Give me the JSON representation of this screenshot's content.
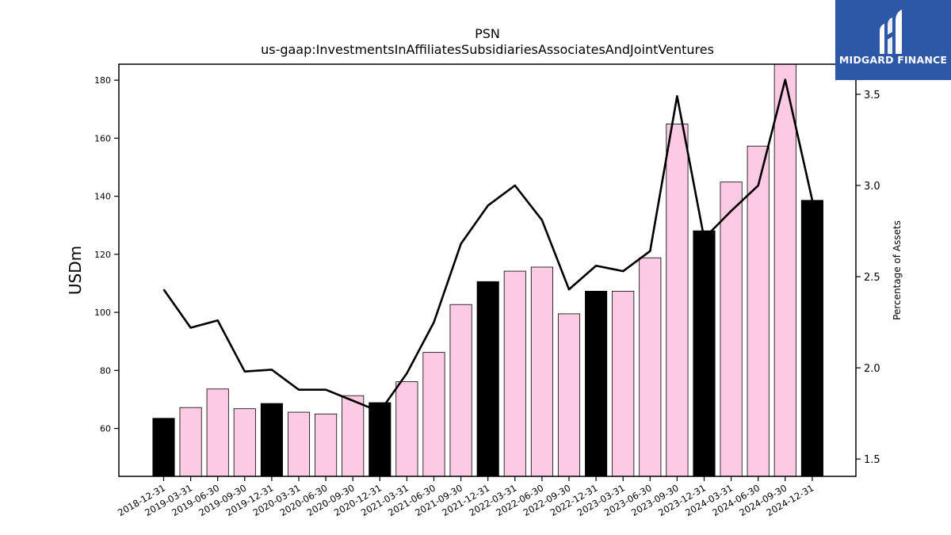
{
  "brand": {
    "name": "MIDGARD FINANCE",
    "bg_color": "#2c58a6"
  },
  "chart_data": {
    "type": "bar",
    "title": "PSN",
    "subtitle": "us-gaap:InvestmentsInAffiliatesSubsidiariesAssociatesAndJointVentures",
    "ylabel": "USDm",
    "y2label": "Percentage of Assets",
    "categories": [
      "2018-12-31",
      "2019-03-31",
      "2019-06-30",
      "2019-09-30",
      "2019-12-31",
      "2020-03-31",
      "2020-06-30",
      "2020-09-30",
      "2020-12-31",
      "2021-03-31",
      "2021-06-30",
      "2021-09-30",
      "2021-12-31",
      "2022-03-31",
      "2022-06-30",
      "2022-09-30",
      "2022-12-31",
      "2023-03-31",
      "2023-06-30",
      "2023-09-30",
      "2023-12-31",
      "2024-03-31",
      "2024-06-30",
      "2024-09-30",
      "2024-12-31"
    ],
    "series": [
      {
        "values": [
          63.5,
          67.2,
          73.6,
          66.8,
          68.6,
          65.6,
          65.0,
          71.3,
          68.9,
          76.1,
          86.2,
          102.7,
          110.6,
          114.2,
          115.6,
          99.5,
          107.3,
          107.3,
          118.8,
          164.9,
          128.1,
          144.9,
          157.3,
          185.5,
          138.6
        ]
      },
      {
        "axis": "right",
        "type": "line",
        "values": [
          2.43,
          2.22,
          2.26,
          1.98,
          1.99,
          1.88,
          1.88,
          1.82,
          1.76,
          1.97,
          2.25,
          2.68,
          2.89,
          3.0,
          2.81,
          2.43,
          2.56,
          2.53,
          2.64,
          3.49,
          2.71,
          2.86,
          3.0,
          3.58,
          2.92
        ]
      }
    ],
    "bar_colors": {
      "year_end": "#000000",
      "quarter": "#fccbe3"
    },
    "ylim": [
      43.5,
      185.5
    ],
    "y_ticks": [
      60,
      80,
      100,
      120,
      140,
      160,
      180
    ],
    "y2lim": [
      1.405,
      3.665
    ],
    "y2_ticks": [
      "1.5",
      "2.0",
      "2.5",
      "3.0",
      "3.5"
    ],
    "grid": false,
    "legend": "none"
  }
}
